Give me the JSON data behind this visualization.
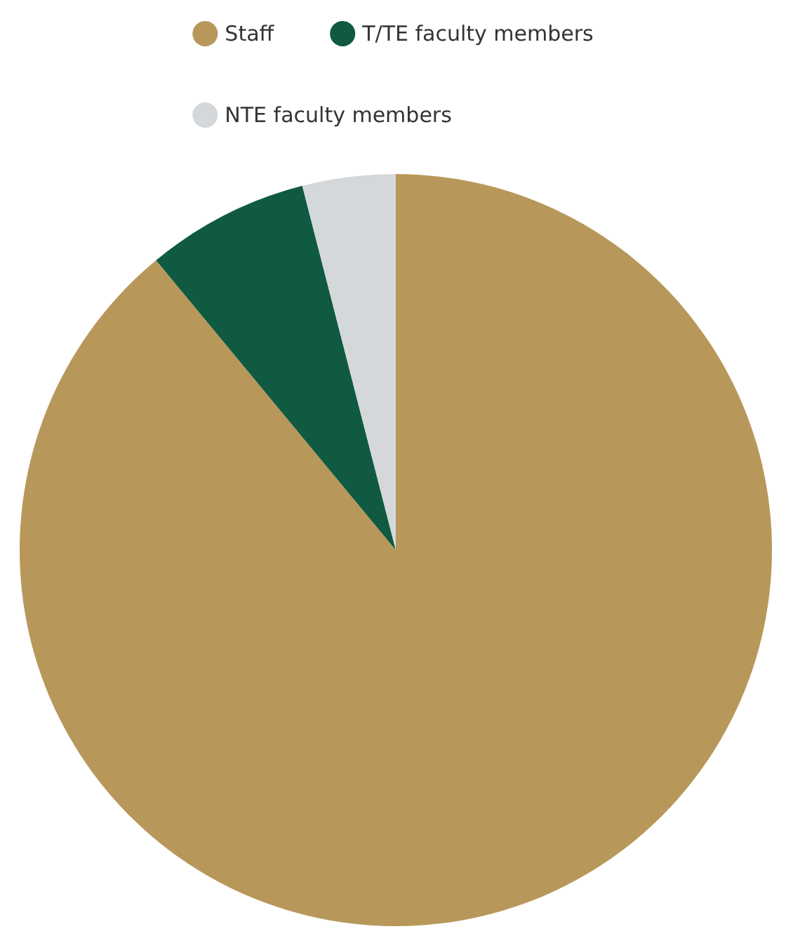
{
  "chart_data": {
    "type": "pie",
    "categories": [
      "Staff",
      "T/TE faculty members",
      "NTE faculty members"
    ],
    "values": [
      89,
      7,
      4
    ],
    "colors": [
      "#b8975a",
      "#0f5a41",
      "#d5d8da"
    ],
    "legend": "top"
  }
}
